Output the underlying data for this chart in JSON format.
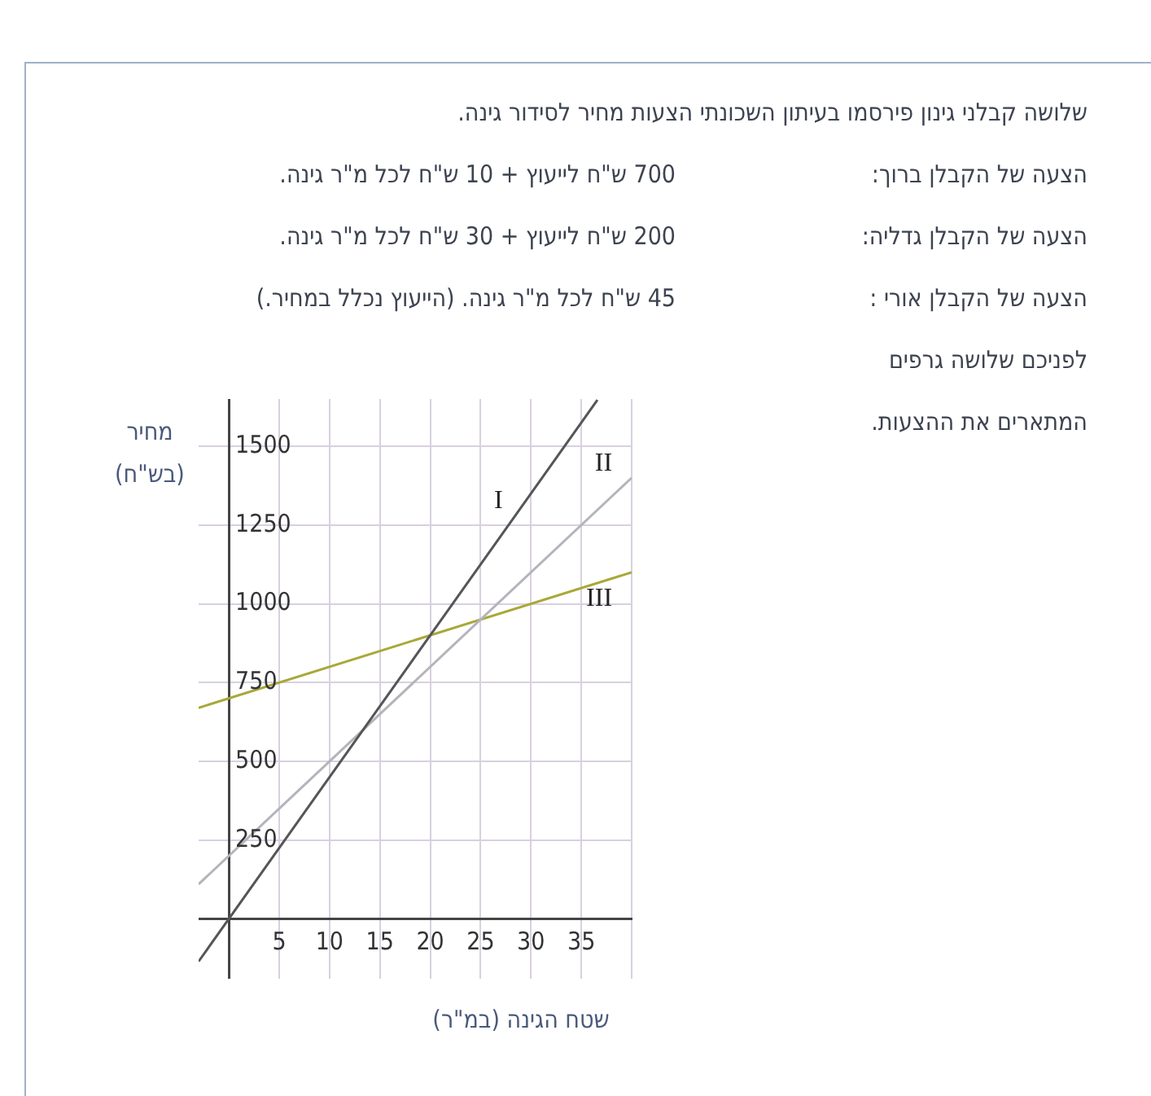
{
  "chart_data": {
    "type": "line",
    "title": "שלושה קבלני גינון פירסמו בעיתון  השכונתי הצעות מחיר לסידור גינה.",
    "annotations": [
      "הצעה של הקבלן ברוך:",
      "700 ש\"ח לייעוץ + 10 ש\"ח לכל מ\"ר גינה.",
      "הצעה של הקבלן גדליה:",
      "200 ש\"ח לייעוץ + 30 ש\"ח לכל מ\"ר גינה.",
      "הצעה של הקבלן אורי :",
      "45 ש\"ח לכל מ\"ר גינה. (הייעוץ נכלל במחיר.)",
      "לפניכם שלושה גרפים",
      "המתארים את ההצעות."
    ],
    "xlabel": "שטח הגינה (במ\"ר)",
    "ylabel": "מחיר (בש\"ח)",
    "series": [
      {
        "name": "I",
        "color": "#555555",
        "x": [
          -3,
          36.6
        ],
        "values": [
          -135,
          1647
        ]
      },
      {
        "name": "II",
        "color": "#b4b4bc",
        "x": [
          -3,
          40
        ],
        "values": [
          110,
          1400
        ]
      },
      {
        "name": "III",
        "color": "#a8a838",
        "x": [
          -3,
          40
        ],
        "values": [
          670,
          1100
        ]
      }
    ],
    "xlim": [
      -3,
      40
    ],
    "ylim": [
      -190,
      1650
    ],
    "xticks": [
      5,
      10,
      15,
      20,
      25,
      30,
      35,
      {
        "value": 40,
        "label": null
      }
    ],
    "yticks": [
      250,
      500,
      750,
      1000,
      1250,
      1500
    ],
    "grid": true,
    "legend": false,
    "marker": "none",
    "line_style": "solid"
  }
}
